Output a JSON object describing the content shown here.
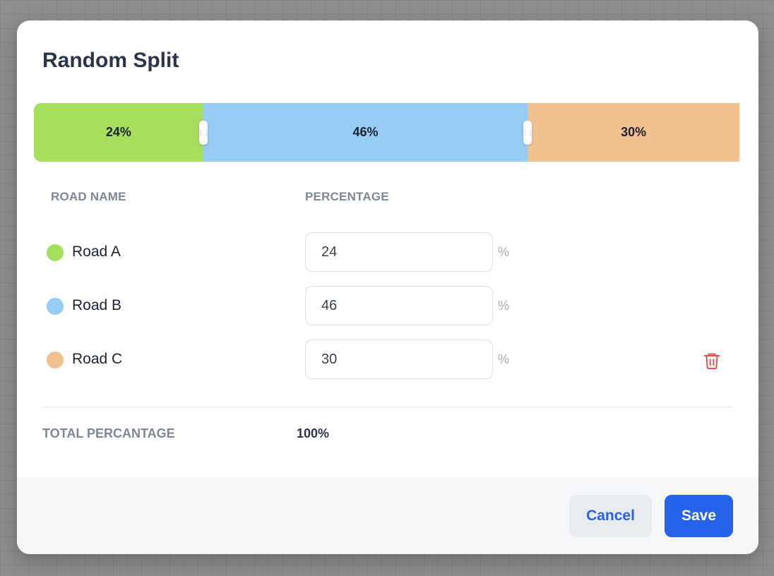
{
  "modal": {
    "title": "Random Split"
  },
  "split_bar": {
    "segments": [
      {
        "label": "24%",
        "value": 24,
        "color": "#a6de5e"
      },
      {
        "label": "46%",
        "value": 46,
        "color": "#97ccf4"
      },
      {
        "label": "30%",
        "value": 30,
        "color": "#f1c190"
      }
    ]
  },
  "table": {
    "headers": {
      "road_name": "ROAD NAME",
      "percentage": "PERCENTAGE"
    },
    "percent_sign": "%",
    "rows": [
      {
        "name": "Road A",
        "value": "24",
        "color": "#a6de5e"
      },
      {
        "name": "Road B",
        "value": "46",
        "color": "#97ccf4"
      },
      {
        "name": "Road C",
        "value": "30",
        "color": "#f1c190"
      }
    ],
    "delete_icon": "trash-icon",
    "delete_color": "#e05252"
  },
  "total": {
    "label": "TOTAL PERCANTAGE",
    "value": "100%"
  },
  "footer": {
    "cancel_label": "Cancel",
    "save_label": "Save",
    "accent": "#2563eb"
  }
}
